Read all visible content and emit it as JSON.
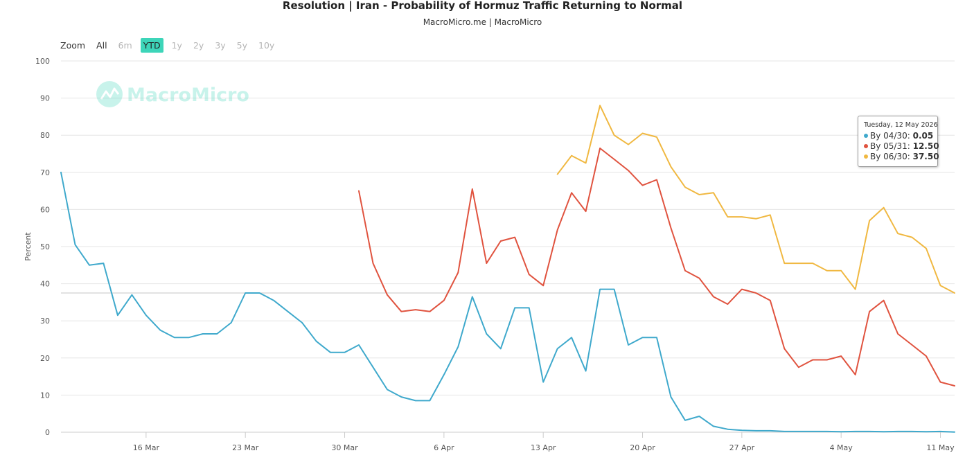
{
  "header": {
    "title": "Resolution | Iran - Probability of Hormuz Traffic Returning to Normal",
    "subtitle": "MacroMicro.me | MacroMicro"
  },
  "zoom": {
    "label": "Zoom",
    "buttons": [
      {
        "label": "All",
        "state": "enabled"
      },
      {
        "label": "6m",
        "state": "disabled"
      },
      {
        "label": "YTD",
        "state": "active"
      },
      {
        "label": "1y",
        "state": "disabled"
      },
      {
        "label": "2y",
        "state": "disabled"
      },
      {
        "label": "3y",
        "state": "disabled"
      },
      {
        "label": "5y",
        "state": "disabled"
      },
      {
        "label": "10y",
        "state": "disabled"
      }
    ]
  },
  "watermark": {
    "text": "MacroMicro",
    "color": "#3dd5b9"
  },
  "tooltip": {
    "date": "Tuesday, 12 May 2026",
    "rows": [
      {
        "label": "By 04/30:",
        "value": "0.05",
        "color": "#3fa9cc"
      },
      {
        "label": "By 05/31:",
        "value": "12.50",
        "color": "#e0533f"
      },
      {
        "label": "By 06/30:",
        "value": "37.50",
        "color": "#f0b841"
      }
    ]
  },
  "chart_data": {
    "type": "line",
    "ylabel": "Percent",
    "xlabel": "",
    "ylim": [
      0,
      100
    ],
    "yticks": [
      0,
      10,
      20,
      30,
      40,
      50,
      60,
      70,
      80,
      90,
      100
    ],
    "xlim": [
      "2026-03-10",
      "2026-05-12"
    ],
    "xticks": [
      {
        "label": "16 Mar",
        "date": "2026-03-16"
      },
      {
        "label": "23 Mar",
        "date": "2026-03-23"
      },
      {
        "label": "30 Mar",
        "date": "2026-03-30"
      },
      {
        "label": "6 Apr",
        "date": "2026-04-06"
      },
      {
        "label": "13 Apr",
        "date": "2026-04-13"
      },
      {
        "label": "20 Apr",
        "date": "2026-04-20"
      },
      {
        "label": "27 Apr",
        "date": "2026-04-27"
      },
      {
        "label": "4 May",
        "date": "2026-05-04"
      },
      {
        "label": "11 May",
        "date": "2026-05-11"
      }
    ],
    "crosshair_y": 37.5,
    "grid": true,
    "series": [
      {
        "name": "By 04/30",
        "color": "#3fa9cc",
        "start": "2026-03-10",
        "values": [
          70,
          50.5,
          45,
          45.5,
          31.5,
          37,
          31.5,
          27.5,
          25.5,
          25.5,
          26.5,
          26.5,
          29.5,
          37.5,
          37.5,
          35.5,
          32.5,
          29.5,
          24.5,
          21.5,
          21.5,
          23.5,
          17.5,
          11.5,
          9.5,
          8.5,
          8.5,
          15.5,
          23,
          36.5,
          26.5,
          22.5,
          33.5,
          33.5,
          13.5,
          22.5,
          25.5,
          16.5,
          38.5,
          38.5,
          23.5,
          25.5,
          25.5,
          9.5,
          3.2,
          4.3,
          1.6,
          0.8,
          0.5,
          0.4,
          0.4,
          0.2,
          0.2,
          0.2,
          0.2,
          0.15,
          0.2,
          0.2,
          0.15,
          0.2,
          0.2,
          0.15,
          0.2,
          0.05
        ]
      },
      {
        "name": "By 05/31",
        "color": "#e0533f",
        "start": "2026-03-31",
        "values": [
          65,
          45.5,
          37,
          32.5,
          33,
          32.5,
          35.5,
          43,
          65.5,
          45.5,
          51.5,
          52.5,
          42.5,
          39.5,
          54.5,
          64.5,
          59.5,
          76.5,
          73.5,
          70.5,
          66.5,
          68,
          55,
          43.5,
          41.5,
          36.5,
          34.5,
          38.5,
          37.5,
          35.5,
          22.5,
          17.5,
          19.5,
          19.5,
          20.5,
          15.5,
          32.5,
          35.5,
          26.5,
          23.5,
          20.5,
          13.5,
          12.5
        ]
      },
      {
        "name": "By 06/30",
        "color": "#f0b841",
        "start": "2026-04-14",
        "values": [
          69.5,
          74.5,
          72.5,
          88,
          80,
          77.5,
          80.5,
          79.5,
          71.5,
          66,
          64,
          64.5,
          58,
          58,
          57.5,
          58.5,
          45.5,
          45.5,
          45.5,
          43.5,
          43.5,
          38.5,
          57,
          60.5,
          53.5,
          52.5,
          49.5,
          39.5,
          37.5
        ]
      }
    ]
  }
}
